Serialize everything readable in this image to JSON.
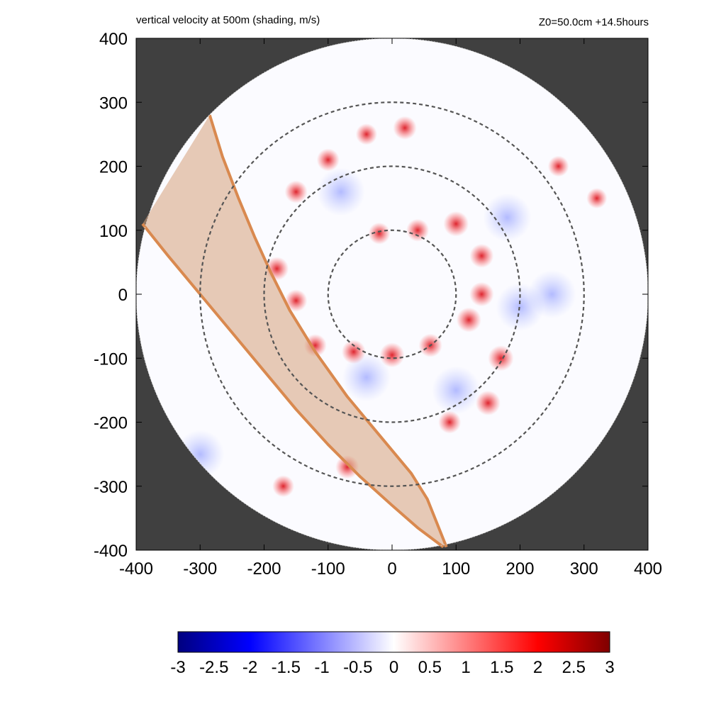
{
  "chart_data": {
    "type": "heatmap",
    "title": "vertical velocity at 500m (shading, m/s)",
    "subtitle": "Z0=50.0cm  +14.5hours",
    "xlim": [
      -400,
      400
    ],
    "ylim": [
      -400,
      400
    ],
    "x_ticks": [
      -400,
      -300,
      -200,
      -100,
      0,
      100,
      200,
      300,
      400
    ],
    "y_ticks": [
      -400,
      -300,
      -200,
      -100,
      0,
      100,
      200,
      300,
      400
    ],
    "x_tick_labels": [
      "-400",
      "-300",
      "-200",
      "-100",
      "0",
      "100",
      "200",
      "300",
      "400"
    ],
    "y_tick_labels": [
      "400",
      "300",
      "200",
      "100",
      "0",
      "-100",
      "-200",
      "-300",
      "-400"
    ],
    "domain_radius": 400,
    "dashed_circles_radii": [
      100,
      200,
      300
    ],
    "background_outside_domain": "#404040",
    "colorbar": {
      "min": -3,
      "max": 3,
      "ticks": [
        -3,
        -2.5,
        -2,
        -1.5,
        -1,
        -0.5,
        0,
        0.5,
        1,
        1.5,
        2,
        2.5,
        3
      ],
      "tick_labels": [
        "-3",
        "-2.5",
        "-2",
        "-1.5",
        "-1",
        "-0.5",
        "0",
        "0.5",
        "1",
        "1.5",
        "2",
        "2.5",
        "3"
      ],
      "colors": [
        "#00007f",
        "#0000ff",
        "#ffffff",
        "#ff0000",
        "#7f0000"
      ]
    },
    "swath": {
      "color": "#d9894f",
      "fill": "#d6a07a",
      "edge_left": [
        [
          -390,
          110
        ],
        [
          -350,
          60
        ],
        [
          -300,
          0
        ],
        [
          -250,
          -60
        ],
        [
          -200,
          -120
        ],
        [
          -150,
          -180
        ],
        [
          -100,
          -235
        ],
        [
          -50,
          -285
        ],
        [
          0,
          -330
        ],
        [
          40,
          -365
        ],
        [
          80,
          -395
        ]
      ],
      "edge_right": [
        [
          -285,
          280
        ],
        [
          -265,
          215
        ],
        [
          -240,
          150
        ],
        [
          -215,
          90
        ],
        [
          -190,
          35
        ],
        [
          -160,
          -25
        ],
        [
          -120,
          -90
        ],
        [
          -70,
          -160
        ],
        [
          -20,
          -220
        ],
        [
          30,
          -280
        ],
        [
          55,
          -320
        ],
        [
          85,
          -395
        ]
      ]
    },
    "updraft_features": [
      {
        "x": -120,
        "y": -80,
        "value": 2.0
      },
      {
        "x": -60,
        "y": -90,
        "value": 2.3
      },
      {
        "x": 0,
        "y": -95,
        "value": 2.5
      },
      {
        "x": 60,
        "y": -80,
        "value": 2.2
      },
      {
        "x": 120,
        "y": -40,
        "value": 2.5
      },
      {
        "x": 140,
        "y": 0,
        "value": 2.4
      },
      {
        "x": 140,
        "y": 60,
        "value": 2.3
      },
      {
        "x": 100,
        "y": 110,
        "value": 2.6
      },
      {
        "x": 40,
        "y": 100,
        "value": 2.0
      },
      {
        "x": -20,
        "y": 95,
        "value": 1.8
      },
      {
        "x": 170,
        "y": -100,
        "value": 2.7
      },
      {
        "x": 150,
        "y": -170,
        "value": 2.5
      },
      {
        "x": 90,
        "y": -200,
        "value": 2.0
      },
      {
        "x": -150,
        "y": 160,
        "value": 2.0
      },
      {
        "x": -100,
        "y": 210,
        "value": 2.0
      },
      {
        "x": -40,
        "y": 250,
        "value": 1.7
      },
      {
        "x": 20,
        "y": 260,
        "value": 2.2
      },
      {
        "x": -180,
        "y": 40,
        "value": 2.2
      },
      {
        "x": -150,
        "y": -10,
        "value": 1.9
      },
      {
        "x": -70,
        "y": -270,
        "value": 2.2
      },
      {
        "x": -170,
        "y": -300,
        "value": 1.8
      },
      {
        "x": 260,
        "y": 200,
        "value": 1.6
      },
      {
        "x": 320,
        "y": 150,
        "value": 1.5
      }
    ],
    "downdraft_features": [
      {
        "x": 200,
        "y": -20,
        "value": -1.0
      },
      {
        "x": 180,
        "y": 120,
        "value": -0.8
      },
      {
        "x": -40,
        "y": -130,
        "value": -0.9
      },
      {
        "x": 100,
        "y": -150,
        "value": -1.2
      },
      {
        "x": -80,
        "y": 160,
        "value": -0.8
      },
      {
        "x": -300,
        "y": -250,
        "value": -0.7
      },
      {
        "x": 250,
        "y": 0,
        "value": -0.6
      }
    ]
  }
}
